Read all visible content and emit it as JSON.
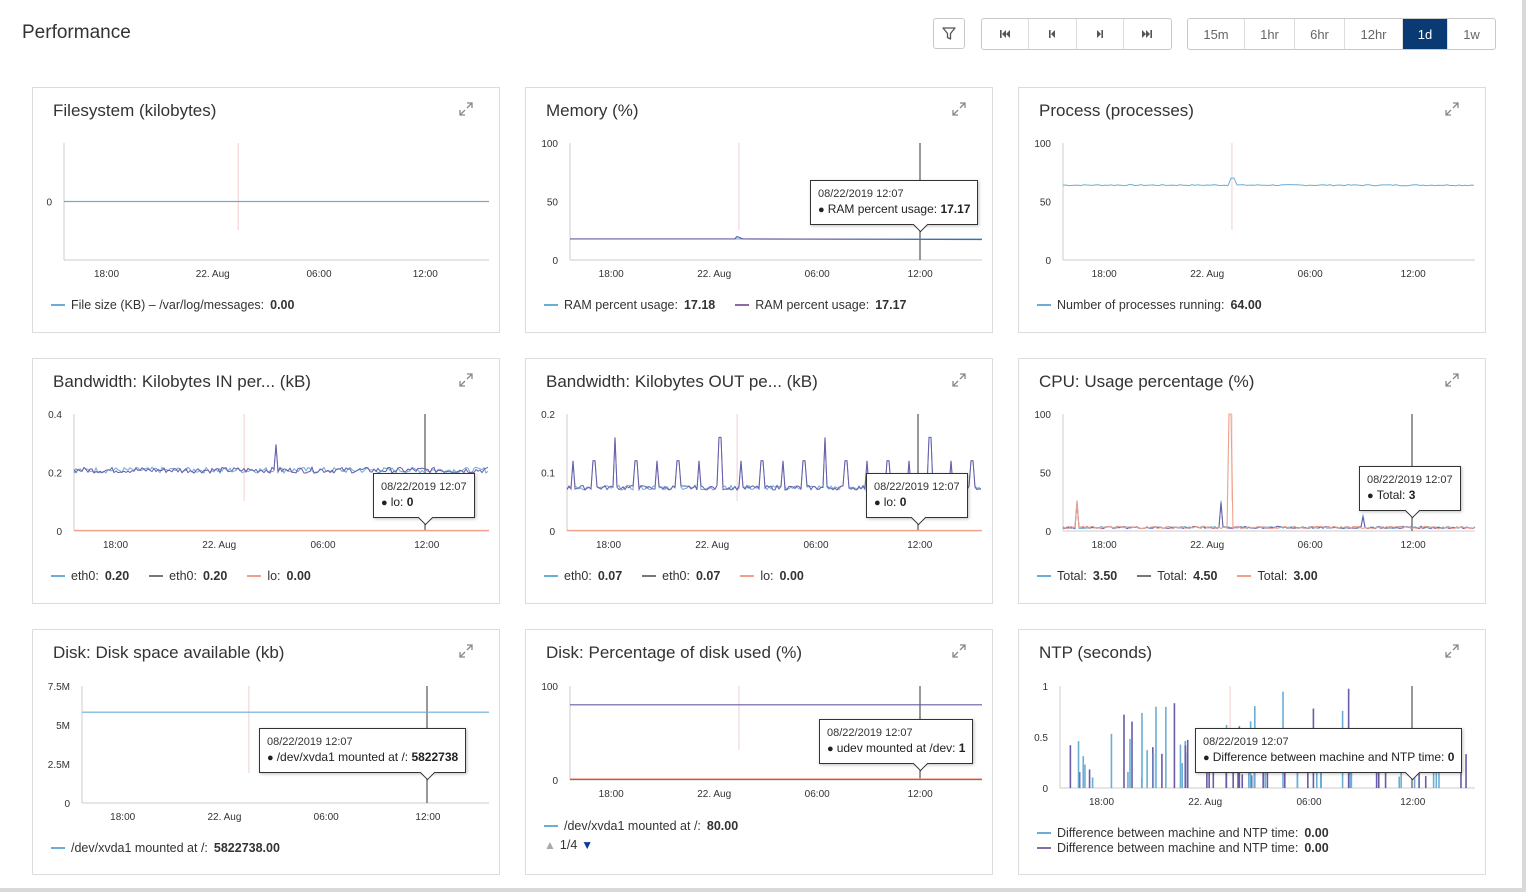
{
  "page": {
    "title": "Performance"
  },
  "toolbar": {
    "filter_icon": "filter-icon",
    "nav_icons": [
      "first-page-icon",
      "previous-page-icon",
      "next-page-icon",
      "last-page-icon"
    ],
    "time_ranges": [
      "15m",
      "1hr",
      "6hr",
      "12hr",
      "1d",
      "1w"
    ],
    "active_range": "1d"
  },
  "colors": {
    "accent": "#0a3a73",
    "series_blue": "#6aaed6",
    "series_purple": "#6a5ba8",
    "series_salmon": "#f0a08a"
  },
  "x_ticks": [
    "18:00",
    "22. Aug",
    "06:00",
    "12:00"
  ],
  "panels": [
    {
      "id": "filesystem",
      "title": "Filesystem (kilobytes)",
      "y_ticks": [
        "0"
      ],
      "legend": [
        {
          "label": "File size (KB) – /var/log/messages:",
          "value": "0.00",
          "color": "#6aaed6"
        }
      ]
    },
    {
      "id": "memory",
      "title": "Memory (%)",
      "y_ticks": [
        "100",
        "50",
        "0"
      ],
      "tooltip": {
        "date": "08/22/2019 12:07",
        "label": "RAM percent usage:",
        "value": "17.17"
      },
      "legend": [
        {
          "label": "RAM percent usage:",
          "value": "17.18",
          "color": "#6aaed6"
        },
        {
          "label": "RAM percent usage:",
          "value": "17.17",
          "color": "#8a6aa8"
        }
      ]
    },
    {
      "id": "process",
      "title": "Process (processes)",
      "y_ticks": [
        "100",
        "50",
        "0"
      ],
      "legend": [
        {
          "label": "Number of processes running:",
          "value": "64.00",
          "color": "#6aaed6"
        }
      ]
    },
    {
      "id": "bw-in",
      "title": "Bandwidth: Kilobytes IN per... (kB)",
      "y_ticks": [
        "0.4",
        "0.2",
        "0"
      ],
      "tooltip": {
        "date": "08/22/2019 12:07",
        "label": "lo:",
        "value": "0"
      },
      "legend": [
        {
          "label": "eth0:",
          "value": "0.20",
          "color": "#6aaed6"
        },
        {
          "label": "eth0:",
          "value": "0.20",
          "color": "#777"
        },
        {
          "label": "lo:",
          "value": "0.00",
          "color": "#f0a08a"
        }
      ]
    },
    {
      "id": "bw-out",
      "title": "Bandwidth: Kilobytes OUT pe... (kB)",
      "y_ticks": [
        "0.2",
        "0.1",
        "0"
      ],
      "tooltip": {
        "date": "08/22/2019 12:07",
        "label": "lo:",
        "value": "0"
      },
      "legend": [
        {
          "label": "eth0:",
          "value": "0.07",
          "color": "#6aaed6"
        },
        {
          "label": "eth0:",
          "value": "0.07",
          "color": "#777"
        },
        {
          "label": "lo:",
          "value": "0.00",
          "color": "#f0a08a"
        }
      ]
    },
    {
      "id": "cpu",
      "title": "CPU: Usage percentage (%)",
      "y_ticks": [
        "100",
        "50",
        "0"
      ],
      "tooltip": {
        "date": "08/22/2019 12:07",
        "label": "Total:",
        "value": "3"
      },
      "legend": [
        {
          "label": "Total:",
          "value": "3.50",
          "color": "#6aaed6"
        },
        {
          "label": "Total:",
          "value": "4.50",
          "color": "#777"
        },
        {
          "label": "Total:",
          "value": "3.00",
          "color": "#f0a08a"
        }
      ]
    },
    {
      "id": "disk-avail",
      "title": "Disk: Disk space available (kb)",
      "y_ticks": [
        "7.5M",
        "5M",
        "2.5M",
        "0"
      ],
      "tooltip": {
        "date": "08/22/2019 12:07",
        "label": "/dev/xvda1 mounted at /:",
        "value": "5822738"
      },
      "legend": [
        {
          "label": "/dev/xvda1 mounted at /:",
          "value": "5822738.00",
          "color": "#6aaed6"
        }
      ]
    },
    {
      "id": "disk-pct",
      "title": "Disk: Percentage of disk used (%)",
      "y_ticks": [
        "100",
        "0"
      ],
      "tooltip": {
        "date": "08/22/2019 12:07",
        "label": "udev mounted at /dev:",
        "value": "1"
      },
      "legend": [
        {
          "label": "/dev/xvda1 mounted at /:",
          "value": "80.00",
          "color": "#6aaed6"
        }
      ],
      "pager": "1/4"
    },
    {
      "id": "ntp",
      "title": "NTP (seconds)",
      "y_ticks": [
        "1",
        "0.5",
        "0"
      ],
      "tooltip": {
        "date": "08/22/2019 12:07",
        "label": "Difference between machine and NTP time:",
        "value": "0"
      },
      "legend": [
        {
          "label": "Difference between machine and NTP time:",
          "value": "0.00",
          "color": "#6aaed6"
        },
        {
          "label": "Difference between machine and NTP time:",
          "value": "0.00",
          "color": "#8a6aa8"
        }
      ]
    }
  ]
}
